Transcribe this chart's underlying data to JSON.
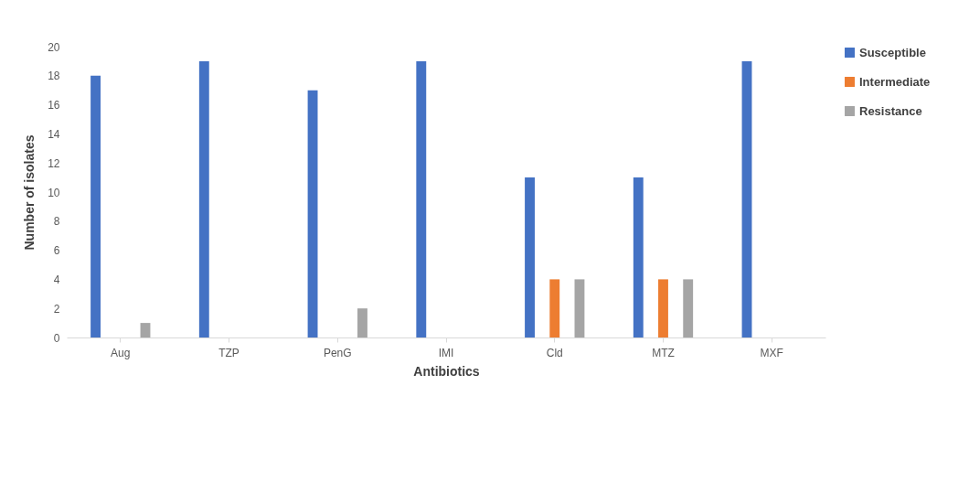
{
  "chart_data": {
    "type": "bar",
    "xlabel": "Antibiotics",
    "ylabel": "Number of isolates",
    "categories": [
      "Aug",
      "TZP",
      "PenG",
      "IMI",
      "Cld",
      "MTZ",
      "MXF"
    ],
    "series": [
      {
        "name": "Susceptible",
        "color": "#4472c4",
        "values": [
          18,
          19,
          17,
          19,
          11,
          11,
          19
        ]
      },
      {
        "name": "Intermediate",
        "color": "#ed7d31",
        "values": [
          0,
          0,
          0,
          0,
          4,
          4,
          0
        ]
      },
      {
        "name": "Resistance",
        "color": "#a5a5a5",
        "values": [
          1,
          0,
          2,
          0,
          4,
          4,
          0
        ]
      }
    ],
    "ylim": [
      0,
      20
    ],
    "yticks": [
      0,
      2,
      4,
      6,
      8,
      10,
      12,
      14,
      16,
      18,
      20
    ],
    "grid": false,
    "legend": "right"
  }
}
